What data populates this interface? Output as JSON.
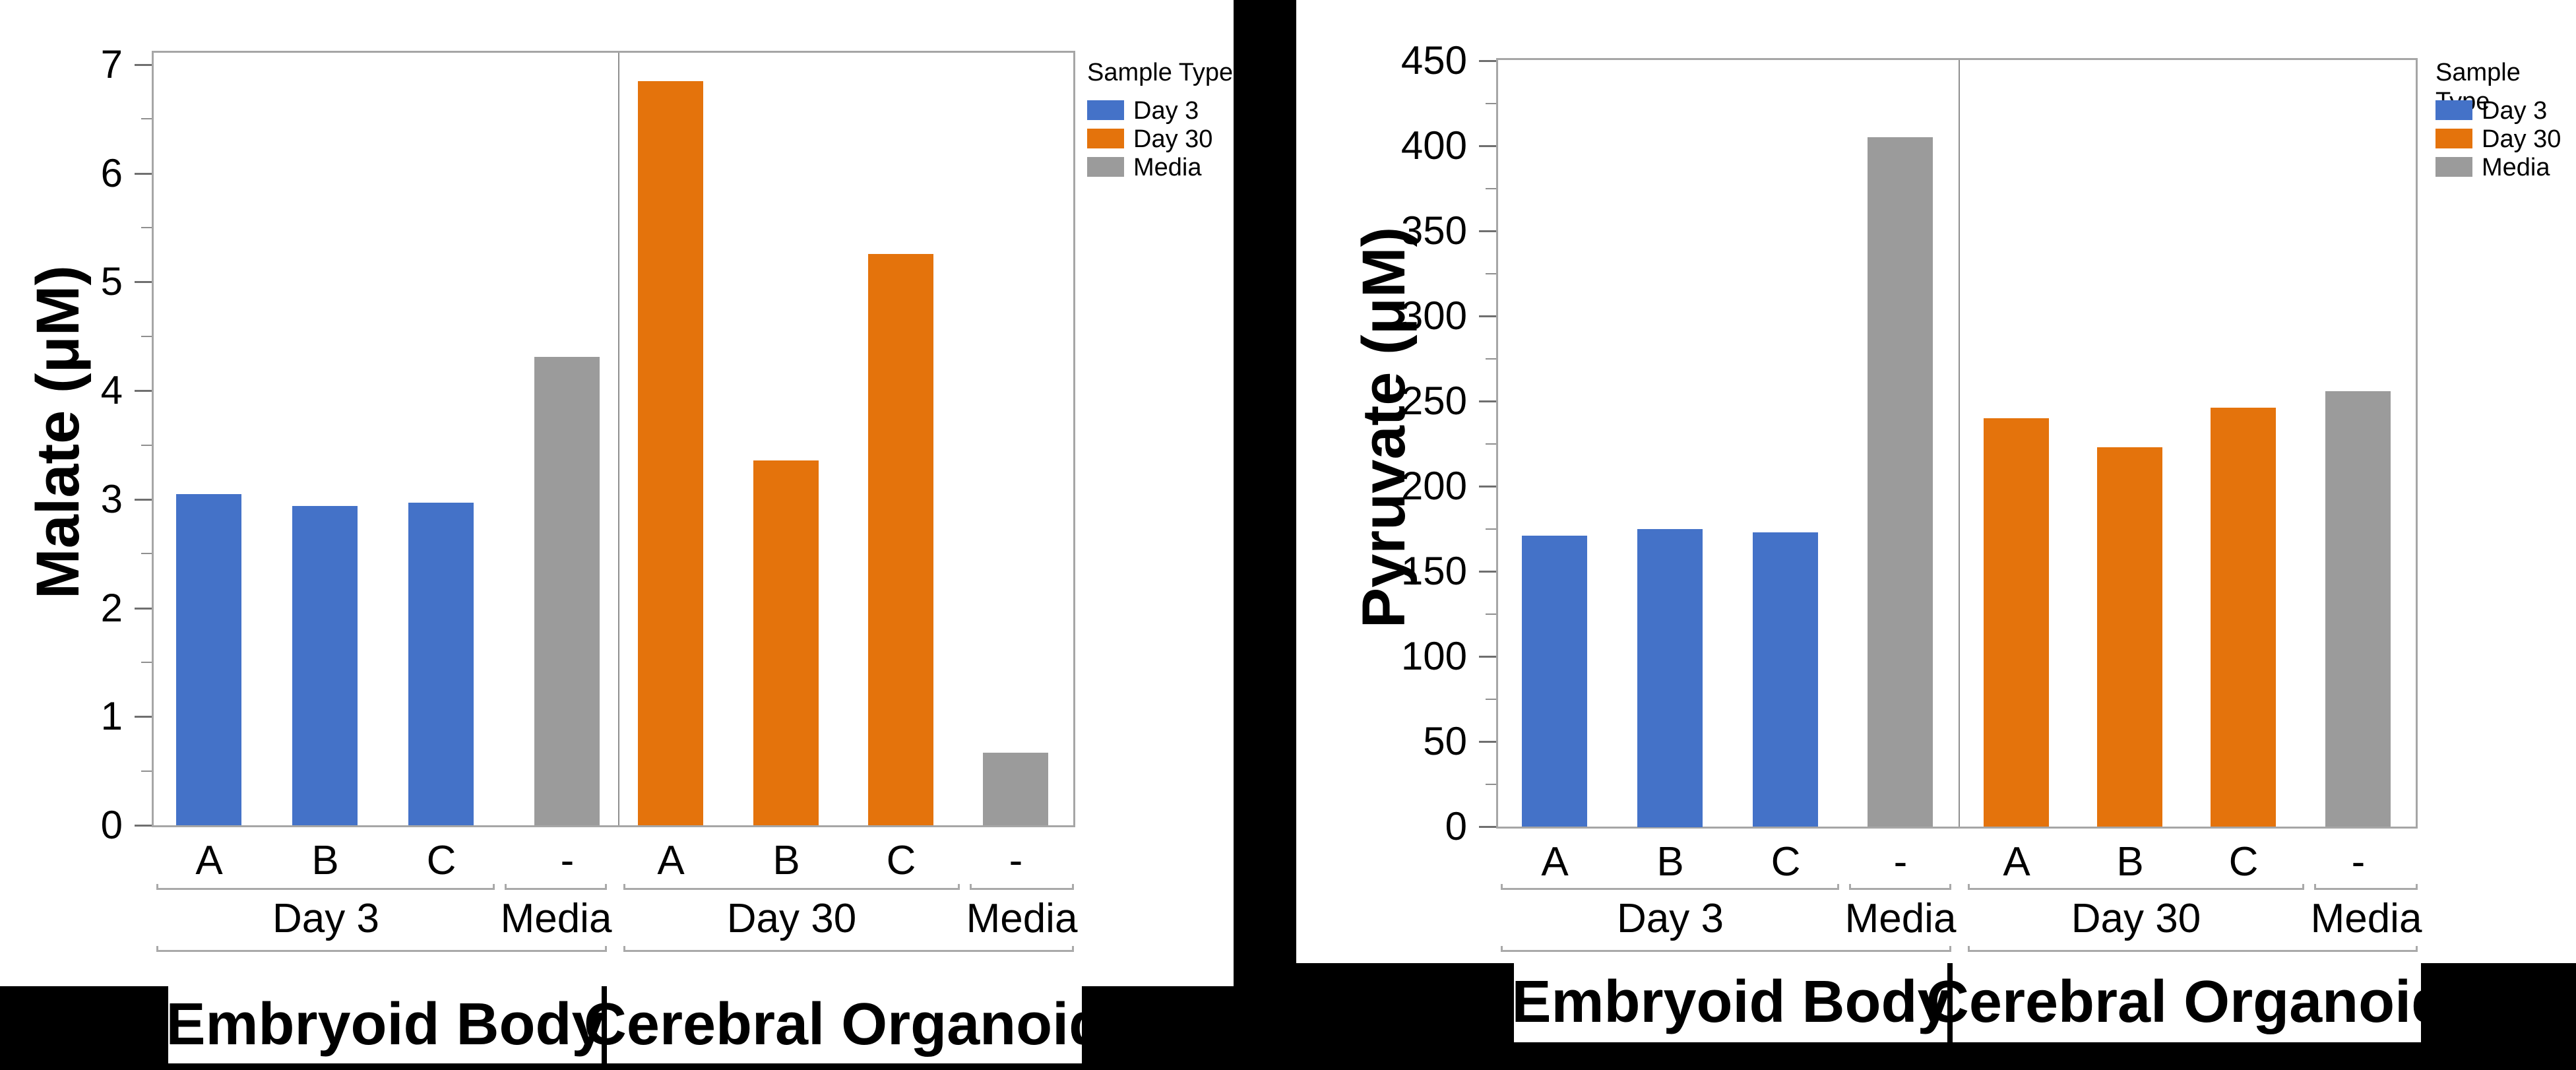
{
  "figure": {
    "background_color": "#000000",
    "panel_color": "#ffffff",
    "accent_colors": {
      "day3_blue": "#4472C8",
      "day30_orange": "#E4730C",
      "media_gray": "#9B9B9B",
      "axis_line_gray": "#A6A6A6",
      "bracket_gray": "#A9A9A9"
    }
  },
  "chart_data": [
    {
      "type": "bar",
      "title": "",
      "xlabel": "",
      "ylabel": "Malate (μM)",
      "ylim": [
        0,
        7
      ],
      "ytick_step": 1,
      "ytick_minor_step": 0.5,
      "ytick_labels": [
        "0",
        "1",
        "2",
        "3",
        "4",
        "5",
        "6",
        "7"
      ],
      "grid": false,
      "legend": {
        "title": "Sample Type",
        "position": "right",
        "entries": [
          {
            "label": "Day 3",
            "color": "#4472C8"
          },
          {
            "label": "Day 30",
            "color": "#E4730C"
          },
          {
            "label": "Media",
            "color": "#9B9B9B"
          }
        ]
      },
      "categories": [
        "A",
        "B",
        "C",
        "-",
        "A",
        "B",
        "C",
        "-"
      ],
      "values": [
        3.05,
        2.94,
        2.97,
        4.31,
        6.85,
        3.36,
        5.26,
        0.67
      ],
      "bar_series": [
        "Day 3",
        "Day 3",
        "Day 3",
        "Media",
        "Day 30",
        "Day 30",
        "Day 30",
        "Media"
      ],
      "subgroups": [
        {
          "label": "Day 3",
          "bar_indexes": [
            0,
            1,
            2
          ]
        },
        {
          "label": "Media",
          "bar_indexes": [
            3
          ]
        },
        {
          "label": "Day 30",
          "bar_indexes": [
            4,
            5,
            6
          ]
        },
        {
          "label": "Media",
          "bar_indexes": [
            7
          ]
        }
      ],
      "groups": [
        {
          "label": "Embryoid Body",
          "subgroup_indexes": [
            0,
            1
          ]
        },
        {
          "label": "Cerebral Organoid",
          "subgroup_indexes": [
            2,
            3
          ]
        }
      ]
    },
    {
      "type": "bar",
      "title": "",
      "xlabel": "",
      "ylabel": "Pyruvate (μM)",
      "ylim": [
        0,
        450
      ],
      "ytick_step": 50,
      "ytick_minor_step": 25,
      "ytick_labels": [
        "0",
        "50",
        "100",
        "150",
        "200",
        "250",
        "300",
        "350",
        "400",
        "450"
      ],
      "grid": false,
      "legend": {
        "title": "Sample Type",
        "position": "right",
        "entries": [
          {
            "label": "Day 3",
            "color": "#4472C8"
          },
          {
            "label": "Day 30",
            "color": "#E4730C"
          },
          {
            "label": "Media",
            "color": "#9B9B9B"
          }
        ]
      },
      "categories": [
        "A",
        "B",
        "C",
        "-",
        "A",
        "B",
        "C",
        "-"
      ],
      "values": [
        171,
        175,
        173,
        405,
        240,
        223,
        246,
        256
      ],
      "bar_series": [
        "Day 3",
        "Day 3",
        "Day 3",
        "Media",
        "Day 30",
        "Day 30",
        "Day 30",
        "Media"
      ],
      "subgroups": [
        {
          "label": "Day 3",
          "bar_indexes": [
            0,
            1,
            2
          ]
        },
        {
          "label": "Media",
          "bar_indexes": [
            3
          ]
        },
        {
          "label": "Day 30",
          "bar_indexes": [
            4,
            5,
            6
          ]
        },
        {
          "label": "Media",
          "bar_indexes": [
            7
          ]
        }
      ],
      "groups": [
        {
          "label": "Embryoid Body",
          "subgroup_indexes": [
            0,
            1
          ]
        },
        {
          "label": "Cerebral Organoid",
          "subgroup_indexes": [
            2,
            3
          ]
        }
      ]
    }
  ]
}
